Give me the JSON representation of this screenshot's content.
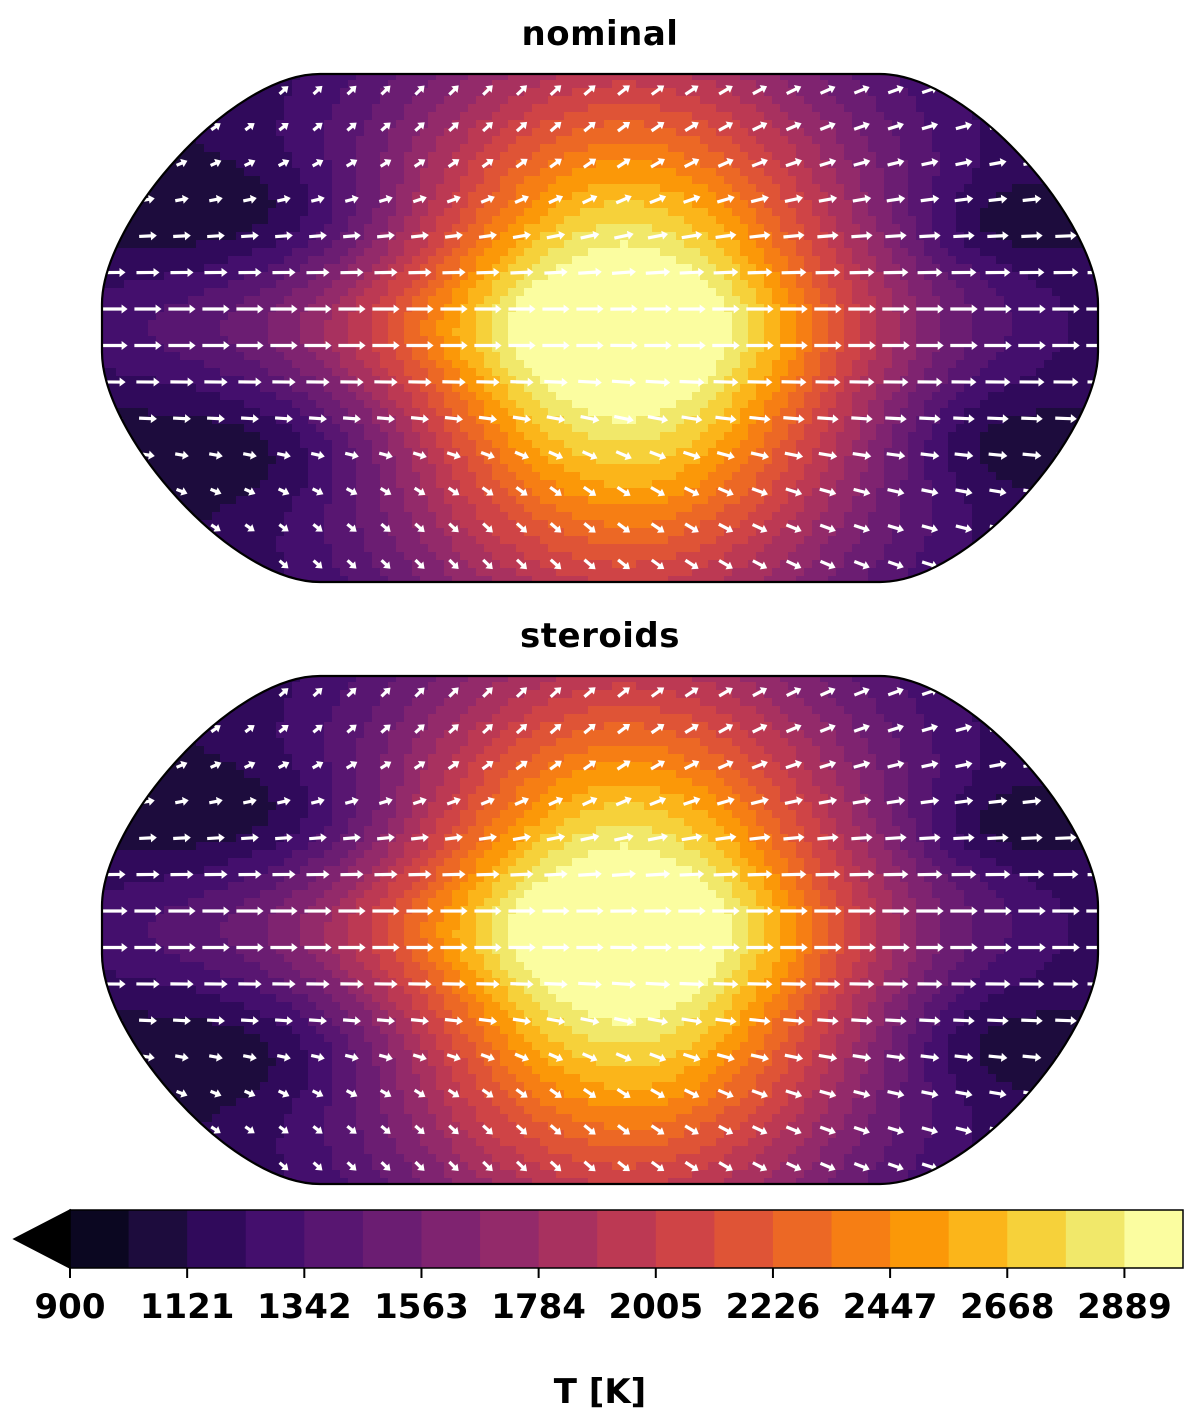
{
  "chart_data": {
    "type": "heatmap",
    "projection": "Robinson (global map)",
    "colormap": "inferno",
    "extend": "min",
    "levels": [
      900,
      1010.5,
      1121,
      1231.5,
      1342,
      1452.5,
      1563,
      1673.5,
      1784,
      1894.5,
      2005,
      2115.5,
      2226,
      2336.5,
      2447,
      2557.5,
      2668,
      2778.5,
      2889,
      2999.5
    ],
    "colorbar": {
      "label": "T [K]",
      "ticks": [
        900,
        1121,
        1342,
        1563,
        1784,
        2005,
        2226,
        2447,
        2668,
        2889
      ],
      "colors": [
        "#0b0721",
        "#1d0c3d",
        "#300a5b",
        "#440f6d",
        "#581671",
        "#6b1d72",
        "#7f2370",
        "#932a6a",
        "#a8315f",
        "#bc3953",
        "#cf4446",
        "#df5436",
        "#ec6825",
        "#f67e14",
        "#fb9808",
        "#fbb51a",
        "#f6d13a",
        "#f1e86a",
        "#fbfda0"
      ]
    },
    "overlay": "wind vectors (white arrows)",
    "panels": [
      {
        "title": "nominal",
        "hotspot_T": 2999,
        "min_T": 900,
        "cold_vortex_T": 950
      },
      {
        "title": "steroids",
        "hotspot_T": 2999,
        "min_T": 900,
        "cold_vortex_T": 920
      }
    ]
  }
}
